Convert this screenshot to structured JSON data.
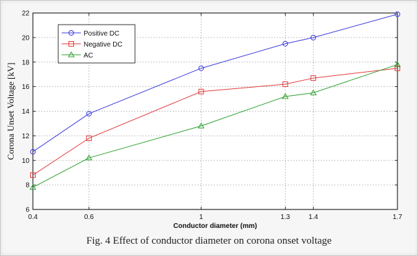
{
  "caption": "Fig. 4 Effect of conductor diameter on corona onset voltage",
  "chart_data": {
    "type": "line",
    "title": "",
    "xlabel": "Conductor diameter (mm)",
    "ylabel": "Corona Unset Voltage [kV]",
    "xlim": [
      0.4,
      1.7
    ],
    "ylim": [
      6,
      22
    ],
    "x_ticks": [
      0.4,
      0.6,
      1,
      1.3,
      1.4,
      1.7
    ],
    "x_tick_labels": [
      "0.4",
      "0.6",
      "1",
      "1.3",
      "1.4",
      "1.7"
    ],
    "y_ticks": [
      6,
      8,
      10,
      12,
      14,
      16,
      18,
      20,
      22
    ],
    "y_tick_labels": [
      "6",
      "8",
      "10",
      "12",
      "14",
      "16",
      "18",
      "20",
      "22"
    ],
    "grid": true,
    "legend_position": "top-left",
    "x": [
      0.4,
      0.6,
      1,
      1.3,
      1.4,
      1.7
    ],
    "series": [
      {
        "name": "Positive DC",
        "color": "#3b3bdc",
        "marker": "circle",
        "values": [
          10.7,
          13.8,
          17.5,
          19.5,
          20.0,
          21.9
        ]
      },
      {
        "name": "Negative DC",
        "color": "#e03a3a",
        "marker": "square",
        "values": [
          8.8,
          11.8,
          15.6,
          16.2,
          16.7,
          17.5
        ]
      },
      {
        "name": "AC",
        "color": "#2ea02e",
        "marker": "triangle",
        "values": [
          7.8,
          10.2,
          12.8,
          15.2,
          15.5,
          17.8
        ]
      }
    ]
  }
}
